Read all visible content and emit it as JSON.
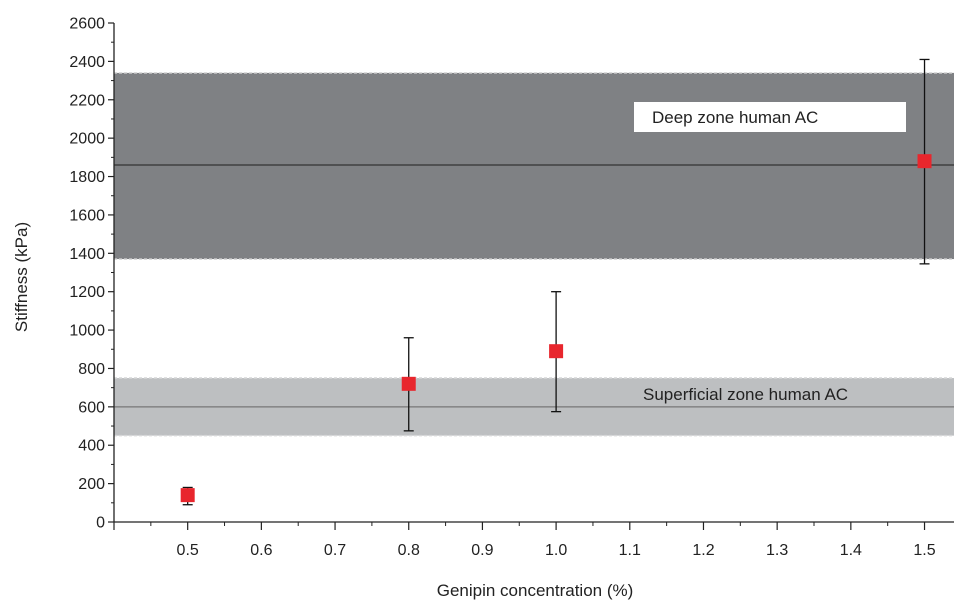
{
  "chart_data": {
    "type": "scatter",
    "xlabel": "Genipin concentration (%)",
    "ylabel": "Stiffness (kPa)",
    "xlim": [
      0.4,
      1.54
    ],
    "ylim": [
      0,
      2600
    ],
    "x_ticks": [
      "0.5",
      "0.6",
      "0.7",
      "0.8",
      "0.9",
      "1.0",
      "1.1",
      "1.2",
      "1.3",
      "1.4",
      "1.5"
    ],
    "x_tick_values": [
      0.5,
      0.6,
      0.7,
      0.8,
      0.9,
      1.0,
      1.1,
      1.2,
      1.3,
      1.4,
      1.5
    ],
    "y_ticks": [
      "0",
      "200",
      "400",
      "600",
      "800",
      "1000",
      "1200",
      "1400",
      "1600",
      "1800",
      "2000",
      "2200",
      "2400",
      "2600"
    ],
    "y_tick_values": [
      0,
      200,
      400,
      600,
      800,
      1000,
      1200,
      1400,
      1600,
      1800,
      2000,
      2200,
      2400,
      2600
    ],
    "grid": false,
    "marker_color": "#e8262d",
    "points": [
      {
        "x": 0.5,
        "y": 140,
        "err_low": 90,
        "err_high": 180
      },
      {
        "x": 0.8,
        "y": 720,
        "err_low": 475,
        "err_high": 960
      },
      {
        "x": 1.0,
        "y": 890,
        "err_low": 575,
        "err_high": 1200
      },
      {
        "x": 1.5,
        "y": 1880,
        "err_low": 1345,
        "err_high": 2410
      }
    ],
    "bands": [
      {
        "label": "Deep zone human AC",
        "mean": 1860,
        "low": 1370,
        "high": 2340,
        "color": "#7f8184",
        "label_box": true
      },
      {
        "label": "Superficial zone human AC",
        "mean": 600,
        "low": 450,
        "high": 750,
        "color": "#bdbfc1",
        "label_box": false
      }
    ]
  }
}
